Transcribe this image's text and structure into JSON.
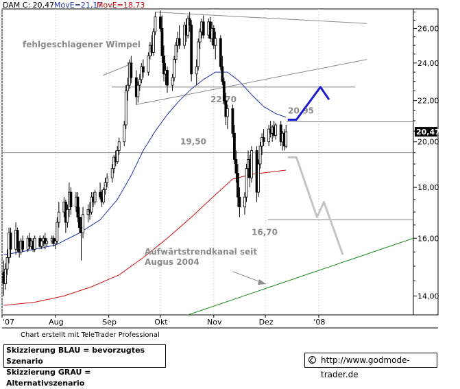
{
  "header": {
    "symbol": "DAM C: 20,47",
    "ma1": "MovE=21,17",
    "ma2": "MovE=18,73"
  },
  "chart_data": {
    "type": "candlestick",
    "y_axis": {
      "ticks": [
        14,
        16,
        18,
        20,
        22,
        24,
        26
      ],
      "tick_labels": [
        "14,00",
        "16,00",
        "18,00",
        "20,00",
        "22,00",
        "24,00",
        "26,00"
      ],
      "range": [
        13.4,
        27.2
      ],
      "scale": "log"
    },
    "x_axis": {
      "labels": [
        "'07",
        "Aug",
        "Sep",
        "Okt",
        "Nov",
        "Dez",
        "'08"
      ],
      "label_dates": [
        "2007-07-01",
        "2007-08-01",
        "2007-09-01",
        "2007-10-01",
        "2007-11-01",
        "2007-12-01",
        "2008-01-01"
      ],
      "range": [
        "2007-07-01",
        "2008-02-25"
      ]
    },
    "last_price": "20,47",
    "ohlc_points": [
      {
        "date": "2007-07-02",
        "o": 14.8,
        "h": 15.2,
        "l": 14.0,
        "c": 14.4
      },
      {
        "date": "2007-07-03",
        "o": 14.4,
        "h": 15.1,
        "l": 14.2,
        "c": 14.9
      },
      {
        "date": "2007-07-04",
        "o": 14.9,
        "h": 15.6,
        "l": 14.7,
        "c": 15.3
      },
      {
        "date": "2007-07-05",
        "o": 15.3,
        "h": 16.4,
        "l": 15.1,
        "c": 16.2
      },
      {
        "date": "2007-07-06",
        "o": 16.2,
        "h": 16.4,
        "l": 15.3,
        "c": 15.6
      },
      {
        "date": "2007-07-09",
        "o": 15.6,
        "h": 16.6,
        "l": 15.4,
        "c": 16.3
      },
      {
        "date": "2007-07-10",
        "o": 16.3,
        "h": 16.4,
        "l": 15.5,
        "c": 15.6
      },
      {
        "date": "2007-07-11",
        "o": 15.6,
        "h": 15.9,
        "l": 15.3,
        "c": 15.5
      },
      {
        "date": "2007-07-12",
        "o": 15.5,
        "h": 16.0,
        "l": 15.4,
        "c": 15.9
      },
      {
        "date": "2007-07-13",
        "o": 15.9,
        "h": 16.1,
        "l": 15.5,
        "c": 15.6
      },
      {
        "date": "2007-07-16",
        "o": 15.6,
        "h": 16.1,
        "l": 15.5,
        "c": 16.0
      },
      {
        "date": "2007-07-17",
        "o": 16.0,
        "h": 16.2,
        "l": 15.6,
        "c": 15.7
      },
      {
        "date": "2007-07-18",
        "o": 15.7,
        "h": 16.0,
        "l": 15.6,
        "c": 15.9
      },
      {
        "date": "2007-07-19",
        "o": 15.9,
        "h": 16.0,
        "l": 15.5,
        "c": 15.6
      },
      {
        "date": "2007-07-20",
        "o": 15.6,
        "h": 16.1,
        "l": 15.5,
        "c": 16.0
      },
      {
        "date": "2007-07-23",
        "o": 16.0,
        "h": 16.1,
        "l": 15.6,
        "c": 15.7
      },
      {
        "date": "2007-07-24",
        "o": 15.7,
        "h": 16.0,
        "l": 15.6,
        "c": 15.9
      },
      {
        "date": "2007-07-25",
        "o": 15.9,
        "h": 16.1,
        "l": 15.7,
        "c": 16.0
      },
      {
        "date": "2007-07-26",
        "o": 16.0,
        "h": 16.2,
        "l": 15.6,
        "c": 15.8
      },
      {
        "date": "2007-07-27",
        "o": 15.8,
        "h": 16.0,
        "l": 15.7,
        "c": 15.9
      },
      {
        "date": "2007-07-30",
        "o": 15.9,
        "h": 16.1,
        "l": 15.8,
        "c": 16.0
      },
      {
        "date": "2007-07-31",
        "o": 16.0,
        "h": 16.1,
        "l": 15.7,
        "c": 15.8
      },
      {
        "date": "2007-08-01",
        "o": 15.8,
        "h": 16.0,
        "l": 15.6,
        "c": 15.9
      },
      {
        "date": "2007-08-02",
        "o": 15.9,
        "h": 16.8,
        "l": 15.8,
        "c": 16.6
      },
      {
        "date": "2007-08-03",
        "o": 16.6,
        "h": 17.4,
        "l": 16.4,
        "c": 17.0
      },
      {
        "date": "2007-08-06",
        "o": 17.0,
        "h": 17.6,
        "l": 16.8,
        "c": 17.4
      },
      {
        "date": "2007-08-07",
        "o": 17.4,
        "h": 17.5,
        "l": 16.2,
        "c": 16.6
      },
      {
        "date": "2007-08-08",
        "o": 16.6,
        "h": 17.3,
        "l": 16.4,
        "c": 17.1
      },
      {
        "date": "2007-08-09",
        "o": 17.1,
        "h": 18.2,
        "l": 16.8,
        "c": 17.8
      },
      {
        "date": "2007-08-10",
        "o": 17.8,
        "h": 18.0,
        "l": 16.9,
        "c": 17.2
      },
      {
        "date": "2007-08-13",
        "o": 17.2,
        "h": 17.8,
        "l": 17.0,
        "c": 17.6
      },
      {
        "date": "2007-08-14",
        "o": 17.6,
        "h": 17.8,
        "l": 16.6,
        "c": 16.8
      },
      {
        "date": "2007-08-15",
        "o": 16.8,
        "h": 17.2,
        "l": 16.2,
        "c": 16.4
      },
      {
        "date": "2007-08-16",
        "o": 16.4,
        "h": 16.8,
        "l": 15.2,
        "c": 16.2
      },
      {
        "date": "2007-08-17",
        "o": 16.2,
        "h": 17.2,
        "l": 16.0,
        "c": 16.9
      },
      {
        "date": "2007-08-20",
        "o": 16.9,
        "h": 17.3,
        "l": 16.6,
        "c": 17.1
      },
      {
        "date": "2007-08-21",
        "o": 17.1,
        "h": 17.4,
        "l": 16.7,
        "c": 17.0
      },
      {
        "date": "2007-08-22",
        "o": 17.0,
        "h": 17.8,
        "l": 16.9,
        "c": 17.6
      },
      {
        "date": "2007-08-23",
        "o": 17.6,
        "h": 17.8,
        "l": 17.2,
        "c": 17.4
      },
      {
        "date": "2007-08-24",
        "o": 17.4,
        "h": 17.9,
        "l": 17.3,
        "c": 17.8
      },
      {
        "date": "2007-08-27",
        "o": 17.8,
        "h": 18.2,
        "l": 17.5,
        "c": 17.6
      },
      {
        "date": "2007-08-28",
        "o": 17.6,
        "h": 17.9,
        "l": 17.2,
        "c": 17.4
      },
      {
        "date": "2007-08-29",
        "o": 17.4,
        "h": 18.0,
        "l": 17.3,
        "c": 17.9
      },
      {
        "date": "2007-08-30",
        "o": 17.9,
        "h": 18.4,
        "l": 17.7,
        "c": 18.2
      },
      {
        "date": "2007-08-31",
        "o": 18.2,
        "h": 18.6,
        "l": 18.0,
        "c": 18.4
      },
      {
        "date": "2007-09-03",
        "o": 18.4,
        "h": 19.0,
        "l": 18.2,
        "c": 18.8
      },
      {
        "date": "2007-09-04",
        "o": 18.8,
        "h": 19.4,
        "l": 18.6,
        "c": 19.3
      },
      {
        "date": "2007-09-05",
        "o": 19.3,
        "h": 19.6,
        "l": 18.9,
        "c": 19.1
      },
      {
        "date": "2007-09-06",
        "o": 19.1,
        "h": 19.8,
        "l": 19.0,
        "c": 19.6
      },
      {
        "date": "2007-09-07",
        "o": 19.6,
        "h": 20.2,
        "l": 19.4,
        "c": 20.0
      },
      {
        "date": "2007-09-10",
        "o": 20.0,
        "h": 21.0,
        "l": 19.8,
        "c": 20.8
      },
      {
        "date": "2007-09-11",
        "o": 20.8,
        "h": 22.8,
        "l": 20.6,
        "c": 22.5
      },
      {
        "date": "2007-09-12",
        "o": 22.5,
        "h": 23.2,
        "l": 22.0,
        "c": 22.8
      },
      {
        "date": "2007-09-13",
        "o": 22.8,
        "h": 24.2,
        "l": 22.6,
        "c": 24.0
      },
      {
        "date": "2007-09-14",
        "o": 24.0,
        "h": 24.4,
        "l": 22.9,
        "c": 23.2
      },
      {
        "date": "2007-09-17",
        "o": 23.2,
        "h": 23.6,
        "l": 21.8,
        "c": 22.2
      },
      {
        "date": "2007-09-18",
        "o": 22.2,
        "h": 23.0,
        "l": 21.9,
        "c": 22.8
      },
      {
        "date": "2007-09-19",
        "o": 22.8,
        "h": 23.4,
        "l": 22.5,
        "c": 23.1
      },
      {
        "date": "2007-09-20",
        "o": 23.1,
        "h": 24.0,
        "l": 22.9,
        "c": 23.8
      },
      {
        "date": "2007-09-21",
        "o": 23.8,
        "h": 24.2,
        "l": 23.2,
        "c": 23.5
      },
      {
        "date": "2007-09-24",
        "o": 23.5,
        "h": 24.6,
        "l": 23.3,
        "c": 24.4
      },
      {
        "date": "2007-09-25",
        "o": 24.4,
        "h": 25.2,
        "l": 24.2,
        "c": 25.0
      },
      {
        "date": "2007-09-26",
        "o": 25.0,
        "h": 25.6,
        "l": 24.4,
        "c": 24.6
      },
      {
        "date": "2007-09-27",
        "o": 24.6,
        "h": 26.0,
        "l": 24.4,
        "c": 25.8
      },
      {
        "date": "2007-09-28",
        "o": 25.8,
        "h": 27.0,
        "l": 25.6,
        "c": 26.7
      },
      {
        "date": "2007-10-01",
        "o": 26.7,
        "h": 27.1,
        "l": 25.8,
        "c": 26.0
      },
      {
        "date": "2007-10-02",
        "o": 26.0,
        "h": 26.8,
        "l": 24.0,
        "c": 24.4
      },
      {
        "date": "2007-10-03",
        "o": 24.4,
        "h": 25.0,
        "l": 23.0,
        "c": 23.4
      },
      {
        "date": "2007-10-04",
        "o": 23.4,
        "h": 24.0,
        "l": 22.8,
        "c": 23.6
      },
      {
        "date": "2007-10-05",
        "o": 23.6,
        "h": 23.8,
        "l": 22.4,
        "c": 22.8
      },
      {
        "date": "2007-10-08",
        "o": 22.8,
        "h": 23.4,
        "l": 22.5,
        "c": 23.2
      },
      {
        "date": "2007-10-09",
        "o": 23.2,
        "h": 24.4,
        "l": 23.0,
        "c": 24.2
      },
      {
        "date": "2007-10-10",
        "o": 24.2,
        "h": 25.2,
        "l": 24.0,
        "c": 25.0
      },
      {
        "date": "2007-10-11",
        "o": 25.0,
        "h": 25.8,
        "l": 24.6,
        "c": 25.4
      },
      {
        "date": "2007-10-12",
        "o": 25.4,
        "h": 26.2,
        "l": 24.8,
        "c": 25.0
      },
      {
        "date": "2007-10-15",
        "o": 25.0,
        "h": 26.4,
        "l": 24.8,
        "c": 26.2
      },
      {
        "date": "2007-10-16",
        "o": 26.2,
        "h": 26.6,
        "l": 25.2,
        "c": 25.6
      },
      {
        "date": "2007-10-17",
        "o": 25.6,
        "h": 26.8,
        "l": 25.4,
        "c": 26.6
      },
      {
        "date": "2007-10-18",
        "o": 26.6,
        "h": 27.0,
        "l": 25.8,
        "c": 26.2
      },
      {
        "date": "2007-10-19",
        "o": 26.2,
        "h": 26.5,
        "l": 23.0,
        "c": 23.4
      },
      {
        "date": "2007-10-22",
        "o": 23.4,
        "h": 24.2,
        "l": 22.8,
        "c": 23.8
      },
      {
        "date": "2007-10-23",
        "o": 23.8,
        "h": 25.4,
        "l": 23.6,
        "c": 25.2
      },
      {
        "date": "2007-10-24",
        "o": 25.2,
        "h": 26.0,
        "l": 24.8,
        "c": 25.8
      },
      {
        "date": "2007-10-25",
        "o": 25.8,
        "h": 26.6,
        "l": 25.4,
        "c": 26.4
      },
      {
        "date": "2007-10-26",
        "o": 26.4,
        "h": 26.8,
        "l": 25.4,
        "c": 25.6
      },
      {
        "date": "2007-10-29",
        "o": 25.6,
        "h": 26.6,
        "l": 25.4,
        "c": 26.4
      },
      {
        "date": "2007-10-30",
        "o": 26.4,
        "h": 26.7,
        "l": 25.2,
        "c": 25.4
      },
      {
        "date": "2007-10-31",
        "o": 25.4,
        "h": 26.4,
        "l": 25.0,
        "c": 26.0
      },
      {
        "date": "2007-11-01",
        "o": 26.0,
        "h": 26.2,
        "l": 24.8,
        "c": 25.0
      },
      {
        "date": "2007-11-02",
        "o": 25.0,
        "h": 25.8,
        "l": 24.2,
        "c": 25.4
      },
      {
        "date": "2007-11-05",
        "o": 25.4,
        "h": 25.6,
        "l": 23.6,
        "c": 23.8
      },
      {
        "date": "2007-11-06",
        "o": 23.8,
        "h": 24.4,
        "l": 22.8,
        "c": 23.0
      },
      {
        "date": "2007-11-07",
        "o": 23.0,
        "h": 23.2,
        "l": 21.8,
        "c": 22.0
      },
      {
        "date": "2007-11-08",
        "o": 22.0,
        "h": 22.4,
        "l": 20.8,
        "c": 21.2
      },
      {
        "date": "2007-11-09",
        "o": 21.2,
        "h": 21.8,
        "l": 20.6,
        "c": 21.6
      },
      {
        "date": "2007-11-12",
        "o": 21.6,
        "h": 21.8,
        "l": 20.2,
        "c": 20.4
      },
      {
        "date": "2007-11-13",
        "o": 20.4,
        "h": 20.8,
        "l": 19.0,
        "c": 19.2
      },
      {
        "date": "2007-11-14",
        "o": 19.2,
        "h": 19.6,
        "l": 18.2,
        "c": 18.6
      },
      {
        "date": "2007-11-15",
        "o": 18.6,
        "h": 19.0,
        "l": 17.2,
        "c": 17.6
      },
      {
        "date": "2007-11-16",
        "o": 17.6,
        "h": 18.0,
        "l": 16.8,
        "c": 17.2
      },
      {
        "date": "2007-11-19",
        "o": 17.2,
        "h": 17.8,
        "l": 16.9,
        "c": 17.6
      },
      {
        "date": "2007-11-20",
        "o": 17.6,
        "h": 19.0,
        "l": 17.4,
        "c": 18.8
      },
      {
        "date": "2007-11-21",
        "o": 18.8,
        "h": 19.6,
        "l": 18.4,
        "c": 19.2
      },
      {
        "date": "2007-11-22",
        "o": 19.2,
        "h": 19.4,
        "l": 18.0,
        "c": 18.4
      },
      {
        "date": "2007-11-23",
        "o": 18.4,
        "h": 19.8,
        "l": 18.2,
        "c": 19.6
      },
      {
        "date": "2007-11-26",
        "o": 19.6,
        "h": 19.8,
        "l": 17.4,
        "c": 17.8
      },
      {
        "date": "2007-11-27",
        "o": 17.8,
        "h": 19.2,
        "l": 17.6,
        "c": 19.0
      },
      {
        "date": "2007-11-28",
        "o": 19.0,
        "h": 20.0,
        "l": 18.8,
        "c": 19.8
      },
      {
        "date": "2007-11-29",
        "o": 19.8,
        "h": 20.4,
        "l": 19.4,
        "c": 20.2
      },
      {
        "date": "2007-11-30",
        "o": 20.2,
        "h": 20.6,
        "l": 19.8,
        "c": 20.0
      },
      {
        "date": "2007-12-03",
        "o": 20.0,
        "h": 20.8,
        "l": 19.8,
        "c": 20.6
      },
      {
        "date": "2007-12-04",
        "o": 20.6,
        "h": 21.0,
        "l": 20.2,
        "c": 20.4
      },
      {
        "date": "2007-12-05",
        "o": 20.4,
        "h": 20.8,
        "l": 20.0,
        "c": 20.7
      },
      {
        "date": "2007-12-06",
        "o": 20.7,
        "h": 21.0,
        "l": 20.2,
        "c": 20.3
      },
      {
        "date": "2007-12-07",
        "o": 20.3,
        "h": 20.9,
        "l": 20.1,
        "c": 20.8
      },
      {
        "date": "2007-12-10",
        "o": 20.8,
        "h": 21.0,
        "l": 19.8,
        "c": 20.0
      },
      {
        "date": "2007-12-11",
        "o": 20.0,
        "h": 20.5,
        "l": 19.6,
        "c": 20.4
      },
      {
        "date": "2007-12-12",
        "o": 20.4,
        "h": 20.6,
        "l": 19.6,
        "c": 19.8
      },
      {
        "date": "2007-12-13",
        "o": 19.8,
        "h": 20.8,
        "l": 19.7,
        "c": 20.47
      }
    ],
    "ma_blue_points": [
      {
        "date": "2007-07-02",
        "v": 15.4
      },
      {
        "date": "2007-07-16",
        "v": 15.55
      },
      {
        "date": "2007-08-01",
        "v": 15.75
      },
      {
        "date": "2007-08-15",
        "v": 16.2
      },
      {
        "date": "2007-08-27",
        "v": 16.7
      },
      {
        "date": "2007-09-06",
        "v": 17.5
      },
      {
        "date": "2007-09-14",
        "v": 18.5
      },
      {
        "date": "2007-09-21",
        "v": 19.6
      },
      {
        "date": "2007-09-28",
        "v": 20.5
      },
      {
        "date": "2007-10-05",
        "v": 21.3
      },
      {
        "date": "2007-10-12",
        "v": 22.0
      },
      {
        "date": "2007-10-19",
        "v": 22.6
      },
      {
        "date": "2007-10-26",
        "v": 23.1
      },
      {
        "date": "2007-11-02",
        "v": 23.5
      },
      {
        "date": "2007-11-09",
        "v": 23.5
      },
      {
        "date": "2007-11-16",
        "v": 23.0
      },
      {
        "date": "2007-11-23",
        "v": 22.3
      },
      {
        "date": "2007-11-30",
        "v": 21.7
      },
      {
        "date": "2007-12-07",
        "v": 21.35
      },
      {
        "date": "2007-12-13",
        "v": 21.17
      }
    ],
    "ma_red_points": [
      {
        "date": "2007-07-02",
        "v": 13.7
      },
      {
        "date": "2007-07-20",
        "v": 13.8
      },
      {
        "date": "2007-08-06",
        "v": 14.0
      },
      {
        "date": "2007-08-22",
        "v": 14.3
      },
      {
        "date": "2007-09-07",
        "v": 14.7
      },
      {
        "date": "2007-09-21",
        "v": 15.3
      },
      {
        "date": "2007-10-05",
        "v": 16.0
      },
      {
        "date": "2007-10-19",
        "v": 16.8
      },
      {
        "date": "2007-11-02",
        "v": 17.7
      },
      {
        "date": "2007-11-12",
        "v": 18.35
      },
      {
        "date": "2007-11-23",
        "v": 18.55
      },
      {
        "date": "2007-12-13",
        "v": 18.73
      }
    ],
    "horizontal_levels": [
      {
        "value": 22.7,
        "label": "22,70"
      },
      {
        "value": 20.95,
        "label": "20,95"
      },
      {
        "value": 19.5,
        "label": "19,50"
      },
      {
        "value": 16.7,
        "label": "16,70"
      }
    ],
    "pennant_upper": [
      {
        "date": "2007-09-28",
        "v": 27.0
      },
      {
        "date": "2008-01-29",
        "v": 26.3
      }
    ],
    "pennant_lower": [
      {
        "date": "2007-09-17",
        "v": 21.8
      },
      {
        "date": "2008-01-29",
        "v": 24.2
      }
    ],
    "trend_channel": [
      {
        "date": "2007-10-17",
        "v": 13.4
      },
      {
        "date": "2008-02-25",
        "v": 16.0
      }
    ],
    "scenario_blue": [
      {
        "date": "2007-12-14",
        "v": 21.05
      },
      {
        "date": "2007-12-19",
        "v": 21.05
      },
      {
        "date": "2008-01-02",
        "v": 22.7
      },
      {
        "date": "2008-01-07",
        "v": 22.05
      }
    ],
    "scenario_gray": [
      {
        "date": "2007-12-14",
        "v": 19.3
      },
      {
        "date": "2007-12-19",
        "v": 19.3
      },
      {
        "date": "2007-12-31",
        "v": 16.8
      },
      {
        "date": "2008-01-04",
        "v": 17.4
      },
      {
        "date": "2008-01-15",
        "v": 15.4
      }
    ],
    "annotations": {
      "pennant": "fehlgeschlagener Wimpel",
      "channel_line1": "Aufwärtstrendkanal seit",
      "channel_line2": "Augus 2004"
    }
  },
  "footer": {
    "credit": "Chart erstellt mit TeleTrader Professional",
    "legend_blue": "Skizzierung BLAU = bevorzugtes Szenario",
    "legend_gray": "Skizzierung GRAU = Alternativszenario",
    "url": "http://www.godmode-trader.de"
  },
  "colors": {
    "price": "#000000",
    "ma_blue": "#1f2fa8",
    "ma_red": "#cc1111",
    "scenario_blue": "#1a1ad0",
    "scenario_gray": "#c4c4c4",
    "channel": "#1a8a1a",
    "pennant": "#8a8a8a",
    "level": "#808080"
  }
}
